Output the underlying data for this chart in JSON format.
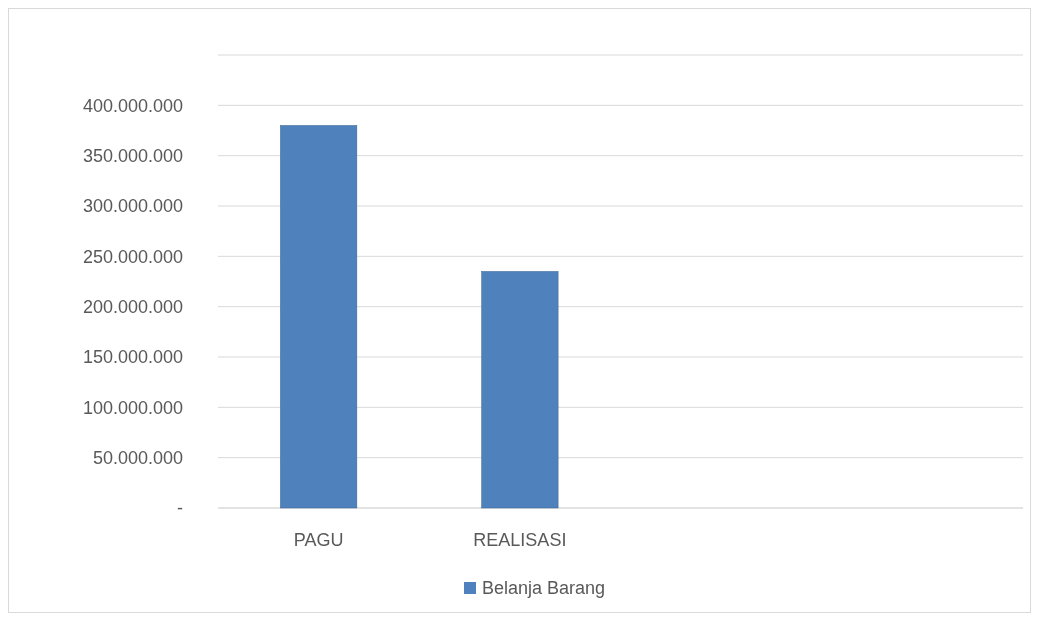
{
  "chart_data": {
    "type": "bar",
    "categories": [
      "PAGU",
      "REALISASI",
      null,
      null
    ],
    "series": [
      {
        "name": "Belanja Barang",
        "color": "#4f81bd",
        "values": [
          380000000,
          235000000,
          null,
          null
        ]
      }
    ],
    "ylim": [
      0,
      450000000
    ],
    "yticks": [
      {
        "value": 0,
        "label": "-"
      },
      {
        "value": 50000000,
        "label": "50.000.000"
      },
      {
        "value": 100000000,
        "label": "100.000.000"
      },
      {
        "value": 150000000,
        "label": "150.000.000"
      },
      {
        "value": 200000000,
        "label": "200.000.000"
      },
      {
        "value": 250000000,
        "label": "250.000.000"
      },
      {
        "value": 300000000,
        "label": "300.000.000"
      },
      {
        "value": 350000000,
        "label": "350.000.000"
      },
      {
        "value": 400000000,
        "label": "400.000.000"
      },
      {
        "value": 450000000,
        "label": null
      }
    ],
    "grid": true,
    "legend": "bottom"
  }
}
